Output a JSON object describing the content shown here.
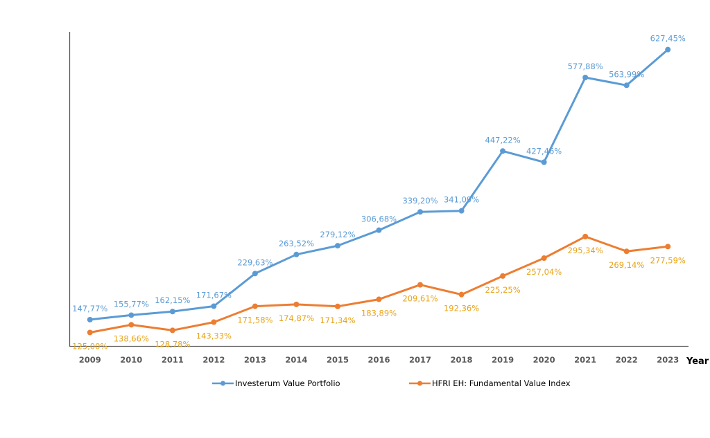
{
  "chart_data": {
    "type": "line",
    "title": "",
    "xlabel": "Year",
    "ylabel": "",
    "ylim": [
      101,
      659
    ],
    "grid": false,
    "legend_position": "bottom",
    "categories": [
      "2009",
      "2010",
      "2011",
      "2012",
      "2013",
      "2014",
      "2015",
      "2016",
      "2017",
      "2018",
      "2019",
      "2020",
      "2021",
      "2022",
      "2023"
    ],
    "series": [
      {
        "name": "Investerum Value Portfolio",
        "color": "#5B9BD5",
        "label_color": "#5B9BD5",
        "label_position": "above",
        "values": [
          147.77,
          155.77,
          162.15,
          171.67,
          229.63,
          263.52,
          279.12,
          306.68,
          339.2,
          341.09,
          447.22,
          427.46,
          577.88,
          563.99,
          627.45
        ],
        "labels": [
          "147,77%",
          "155,77%",
          "162,15%",
          "171,67%",
          "229,63%",
          "263,52%",
          "279,12%",
          "306,68%",
          "339,20%",
          "341,09%",
          "447,22%",
          "427,46%",
          "577,88%",
          "563,99%",
          "627,45%"
        ]
      },
      {
        "name": "HFRI EH: Fundamental Value Index",
        "color": "#ED7D31",
        "label_color": "#E8A317",
        "label_position": "below",
        "values": [
          125.0,
          138.66,
          128.78,
          143.33,
          171.58,
          174.87,
          171.34,
          183.89,
          209.61,
          192.36,
          225.25,
          257.04,
          295.34,
          269.14,
          277.59
        ],
        "labels": [
          "125,00%",
          "138,66%",
          "128,78%",
          "143,33%",
          "171,58%",
          "174,87%",
          "171,34%",
          "183,89%",
          "209,61%",
          "192,36%",
          "225,25%",
          "257,04%",
          "295,34%",
          "269,14%",
          "277,59%"
        ]
      }
    ]
  }
}
